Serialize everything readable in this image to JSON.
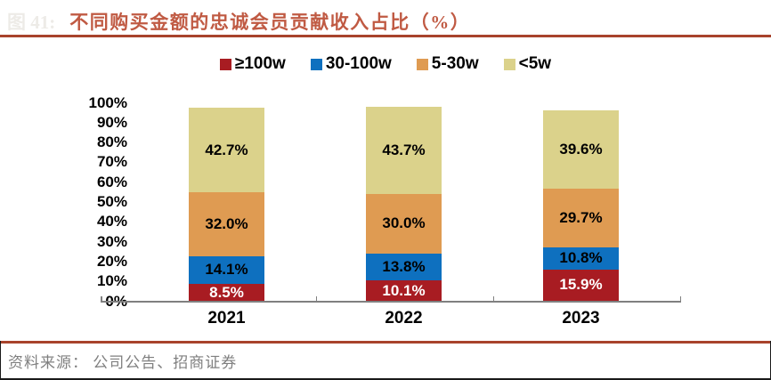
{
  "figure": {
    "prefix": "图 41:",
    "title": "不同购买金额的忠诚会员贡献收入占比（%）"
  },
  "legend": [
    {
      "label": "≥100w",
      "color": "#A81C22"
    },
    {
      "label": "30-100w",
      "color": "#0E70BF"
    },
    {
      "label": "5-30w",
      "color": "#DF9B52"
    },
    {
      "label": "<5w",
      "color": "#DBD28B"
    }
  ],
  "chart_data": {
    "type": "bar",
    "stacked": true,
    "title": "不同购买金额的忠诚会员贡献收入占比（%）",
    "categories": [
      "2021",
      "2022",
      "2023"
    ],
    "series": [
      {
        "name": "≥100w",
        "color": "#A81C22",
        "label_color": "#FFFFFF",
        "values": [
          8.5,
          10.1,
          15.9
        ]
      },
      {
        "name": "30-100w",
        "color": "#0E70BF",
        "label_color": "#000000",
        "values": [
          14.1,
          13.8,
          10.8
        ]
      },
      {
        "name": "5-30w",
        "color": "#DF9B52",
        "label_color": "#000000",
        "values": [
          32.0,
          30.0,
          29.7
        ]
      },
      {
        "name": "<5w",
        "color": "#DBD28B",
        "label_color": "#000000",
        "values": [
          42.7,
          43.7,
          39.6
        ]
      }
    ],
    "y_axis": {
      "min": 0,
      "max": 100,
      "ticks": [
        "0%",
        "10%",
        "20%",
        "30%",
        "40%",
        "50%",
        "60%",
        "70%",
        "80%",
        "90%",
        "100%"
      ]
    },
    "legend_position": "top",
    "grid": false
  },
  "footer": {
    "source": "资料来源： 公司公告、招商证券"
  },
  "colors": {
    "accent_rule": "#A8432C",
    "title_text": "#C05A43",
    "axis_line": "#808080",
    "footer_text": "#7F7F7F",
    "border_black": "#1A1A1A"
  }
}
